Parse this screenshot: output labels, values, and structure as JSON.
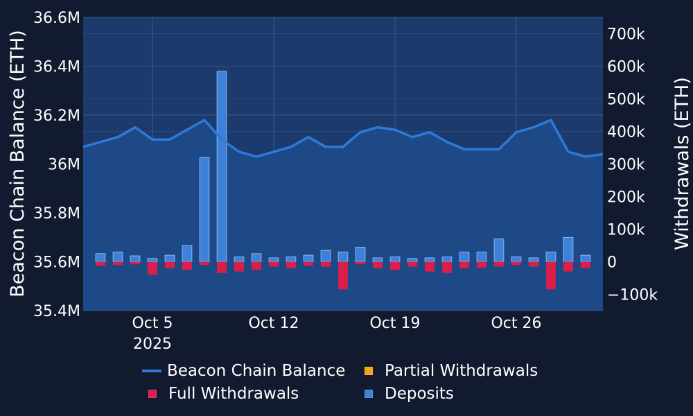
{
  "chart_data": {
    "type": "line+bar",
    "x_start": "2025-10-01",
    "x_end": "2025-10-31",
    "x_ticks": [
      {
        "date": "2025-10-05",
        "label": "Oct 5",
        "sublabel": "2025"
      },
      {
        "date": "2025-10-12",
        "label": "Oct 12"
      },
      {
        "date": "2025-10-19",
        "label": "Oct 19"
      },
      {
        "date": "2025-10-26",
        "label": "Oct 26"
      }
    ],
    "y_left": {
      "title": "Beacon Chain Balance (ETH)",
      "range": [
        35400000,
        36600000
      ],
      "ticks": [
        35400000,
        35600000,
        35800000,
        36000000,
        36200000,
        36400000,
        36600000
      ],
      "tick_labels": [
        "35.4M",
        "35.6M",
        "35.8M",
        "36M",
        "36.2M",
        "36.4M",
        "36.6M"
      ]
    },
    "y_right": {
      "title": "Withdrawals (ETH)",
      "range": [
        -150000,
        750000
      ],
      "ticks": [
        -100000,
        0,
        100000,
        200000,
        300000,
        400000,
        500000,
        600000,
        700000
      ],
      "tick_labels": [
        "−100k",
        "0",
        "100k",
        "200k",
        "300k",
        "400k",
        "500k",
        "600k",
        "700k"
      ]
    },
    "colors": {
      "background": "#111a2e",
      "plot_bg": "#1c3a6c",
      "balance": "#2d7ad8",
      "full_withdrawals": "#dc1e4a",
      "partial_withdrawals": "#f2a516",
      "deposits": "#3d82d8",
      "deposits_edge": "#9cc6ff"
    },
    "legend": [
      {
        "name": "Beacon Chain Balance",
        "style": "line",
        "color": "#2d7ad8"
      },
      {
        "name": "Partial Withdrawals",
        "style": "box",
        "color": "#f2a516"
      },
      {
        "name": "Full Withdrawals",
        "style": "box",
        "color": "#dc1e4a"
      },
      {
        "name": "Deposits",
        "style": "box",
        "color": "#3d82d8"
      }
    ],
    "legend_position": "bottom",
    "grid": true,
    "series": [
      {
        "name": "Beacon Chain Balance",
        "axis": "left",
        "type": "area-line",
        "x": [
          "2025-10-01",
          "2025-10-02",
          "2025-10-03",
          "2025-10-04",
          "2025-10-05",
          "2025-10-06",
          "2025-10-07",
          "2025-10-08",
          "2025-10-09",
          "2025-10-10",
          "2025-10-11",
          "2025-10-12",
          "2025-10-13",
          "2025-10-14",
          "2025-10-15",
          "2025-10-16",
          "2025-10-17",
          "2025-10-18",
          "2025-10-19",
          "2025-10-20",
          "2025-10-21",
          "2025-10-22",
          "2025-10-23",
          "2025-10-24",
          "2025-10-25",
          "2025-10-26",
          "2025-10-27",
          "2025-10-28",
          "2025-10-29",
          "2025-10-30",
          "2025-10-31"
        ],
        "values": [
          36070000,
          36090000,
          36110000,
          36150000,
          36100000,
          36100000,
          36140000,
          36180000,
          36100000,
          36050000,
          36030000,
          36050000,
          36070000,
          36110000,
          36070000,
          36070000,
          36130000,
          36150000,
          36140000,
          36110000,
          36130000,
          36090000,
          36060000,
          36060000,
          36060000,
          36130000,
          36150000,
          36180000,
          36050000,
          36030000,
          36040000
        ]
      },
      {
        "name": "Deposits",
        "axis": "right",
        "type": "bar",
        "x": [
          "2025-10-02",
          "2025-10-03",
          "2025-10-04",
          "2025-10-05",
          "2025-10-06",
          "2025-10-07",
          "2025-10-08",
          "2025-10-09",
          "2025-10-10",
          "2025-10-11",
          "2025-10-12",
          "2025-10-13",
          "2025-10-14",
          "2025-10-15",
          "2025-10-16",
          "2025-10-17",
          "2025-10-18",
          "2025-10-19",
          "2025-10-20",
          "2025-10-21",
          "2025-10-22",
          "2025-10-23",
          "2025-10-24",
          "2025-10-25",
          "2025-10-26",
          "2025-10-27",
          "2025-10-28",
          "2025-10-29",
          "2025-10-30"
        ],
        "values": [
          25000,
          30000,
          18000,
          10000,
          20000,
          50000,
          320000,
          585000,
          15000,
          25000,
          12000,
          15000,
          20000,
          35000,
          30000,
          45000,
          12000,
          15000,
          10000,
          12000,
          15000,
          30000,
          30000,
          70000,
          15000,
          12000,
          30000,
          75000,
          20000
        ]
      },
      {
        "name": "Full Withdrawals",
        "axis": "right",
        "type": "bar",
        "x": [
          "2025-10-02",
          "2025-10-03",
          "2025-10-04",
          "2025-10-05",
          "2025-10-06",
          "2025-10-07",
          "2025-10-08",
          "2025-10-09",
          "2025-10-10",
          "2025-10-11",
          "2025-10-12",
          "2025-10-13",
          "2025-10-14",
          "2025-10-15",
          "2025-10-16",
          "2025-10-17",
          "2025-10-18",
          "2025-10-19",
          "2025-10-20",
          "2025-10-21",
          "2025-10-22",
          "2025-10-23",
          "2025-10-24",
          "2025-10-25",
          "2025-10-26",
          "2025-10-27",
          "2025-10-28",
          "2025-10-29",
          "2025-10-30"
        ],
        "values": [
          -12000,
          -10000,
          -8000,
          -40000,
          -20000,
          -25000,
          -10000,
          -35000,
          -30000,
          -25000,
          -15000,
          -20000,
          -12000,
          -15000,
          -85000,
          -8000,
          -20000,
          -25000,
          -15000,
          -30000,
          -35000,
          -20000,
          -18000,
          -15000,
          -10000,
          -15000,
          -85000,
          -30000,
          -20000
        ]
      },
      {
        "name": "Partial Withdrawals",
        "axis": "right",
        "type": "bar",
        "x": [],
        "values": []
      }
    ]
  }
}
